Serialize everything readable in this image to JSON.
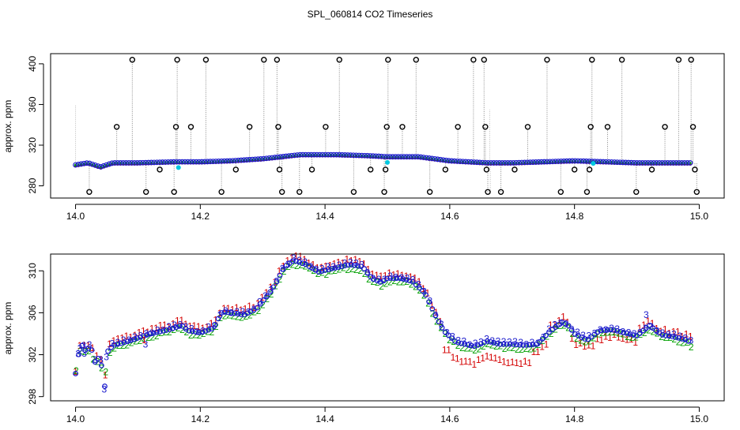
{
  "figure": {
    "title": "SPL_060814  CO2 Timeseries"
  },
  "colors": {
    "black": "#000000",
    "red": "#d40000",
    "green": "#00a000",
    "blue": "#1a1acc",
    "cyan": "#00c8e0",
    "drop": "#8a8a8a"
  },
  "chart_data": [
    {
      "type": "scatter",
      "id": "top",
      "title": "",
      "xlabel": "",
      "ylabel": "approx. ppm",
      "xlim": [
        13.96,
        15.04
      ],
      "ylim": [
        268,
        410
      ],
      "xticks": [
        14.0,
        14.2,
        14.4,
        14.6,
        14.8,
        15.0
      ],
      "xtick_labels": [
        "14.0",
        "14.2",
        "14.4",
        "14.6",
        "14.8",
        "15.0"
      ],
      "yticks": [
        280,
        320,
        360,
        400
      ],
      "ytick_labels": [
        "280",
        "320",
        "360",
        "400"
      ],
      "grid": false,
      "baseline_knots": [
        [
          14.0,
          300
        ],
        [
          14.02,
          302
        ],
        [
          14.04,
          298
        ],
        [
          14.06,
          302
        ],
        [
          14.1,
          302
        ],
        [
          14.16,
          303
        ],
        [
          14.2,
          303
        ],
        [
          14.25,
          304
        ],
        [
          14.3,
          306
        ],
        [
          14.33,
          308
        ],
        [
          14.36,
          310
        ],
        [
          14.42,
          310
        ],
        [
          14.47,
          309
        ],
        [
          14.5,
          308
        ],
        [
          14.55,
          308
        ],
        [
          14.6,
          304
        ],
        [
          14.66,
          302
        ],
        [
          14.7,
          302
        ],
        [
          14.75,
          303
        ],
        [
          14.8,
          304
        ],
        [
          14.85,
          303
        ],
        [
          14.9,
          302
        ],
        [
          14.95,
          302
        ],
        [
          14.99,
          302
        ]
      ],
      "outliers": [
        [
          14.022,
          274
        ],
        [
          14.066,
          338
        ],
        [
          14.091,
          404
        ],
        [
          14.113,
          274
        ],
        [
          14.135,
          296
        ],
        [
          14.158,
          274
        ],
        [
          14.161,
          338
        ],
        [
          14.163,
          404
        ],
        [
          14.185,
          338
        ],
        [
          14.209,
          404
        ],
        [
          14.234,
          274
        ],
        [
          14.257,
          296
        ],
        [
          14.279,
          338
        ],
        [
          14.302,
          404
        ],
        [
          14.323,
          404
        ],
        [
          14.325,
          338
        ],
        [
          14.327,
          296
        ],
        [
          14.331,
          274
        ],
        [
          14.359,
          274
        ],
        [
          14.379,
          296
        ],
        [
          14.401,
          338
        ],
        [
          14.423,
          404
        ],
        [
          14.446,
          274
        ],
        [
          14.473,
          296
        ],
        [
          14.495,
          274
        ],
        [
          14.497,
          296
        ],
        [
          14.499,
          338
        ],
        [
          14.501,
          404
        ],
        [
          14.524,
          338
        ],
        [
          14.546,
          404
        ],
        [
          14.568,
          274
        ],
        [
          14.593,
          296
        ],
        [
          14.613,
          338
        ],
        [
          14.638,
          404
        ],
        [
          14.661,
          274
        ],
        [
          14.659,
          296
        ],
        [
          14.657,
          338
        ],
        [
          14.655,
          404
        ],
        [
          14.682,
          274
        ],
        [
          14.704,
          296
        ],
        [
          14.725,
          338
        ],
        [
          14.756,
          404
        ],
        [
          14.778,
          274
        ],
        [
          14.8,
          296
        ],
        [
          14.82,
          274
        ],
        [
          14.824,
          296
        ],
        [
          14.826,
          338
        ],
        [
          14.828,
          404
        ],
        [
          14.853,
          338
        ],
        [
          14.876,
          404
        ],
        [
          14.899,
          274
        ],
        [
          14.924,
          296
        ],
        [
          14.945,
          338
        ],
        [
          14.967,
          404
        ],
        [
          14.987,
          404
        ],
        [
          14.99,
          338
        ],
        [
          14.993,
          296
        ],
        [
          14.996,
          274
        ]
      ],
      "cyan_points": [
        [
          14.165,
          298
        ],
        [
          14.5,
          303
        ],
        [
          14.83,
          302
        ]
      ]
    },
    {
      "type": "scatter",
      "id": "bottom",
      "title": "",
      "xlabel": "",
      "ylabel": "approx. ppm",
      "xlim": [
        13.96,
        15.04
      ],
      "ylim": [
        297.6,
        311.6
      ],
      "xticks": [
        14.0,
        14.2,
        14.4,
        14.6,
        14.8,
        15.0
      ],
      "xtick_labels": [
        "14.0",
        "14.2",
        "14.4",
        "14.6",
        "14.8",
        "15.0"
      ],
      "yticks": [
        298,
        302,
        306,
        310
      ],
      "ytick_labels": [
        "298",
        "302",
        "306",
        "310"
      ],
      "grid": false,
      "marker_labels": [
        "1",
        "2",
        "3"
      ],
      "series": [
        {
          "name": "1",
          "color": "red"
        },
        {
          "name": "2",
          "color": "green"
        },
        {
          "name": "3",
          "color": "blue"
        }
      ],
      "base_knots": [
        [
          14.0,
          300.2
        ],
        [
          14.004,
          301.8
        ],
        [
          14.01,
          302.9
        ],
        [
          14.017,
          302.3
        ],
        [
          14.024,
          302.9
        ],
        [
          14.031,
          301.3
        ],
        [
          14.039,
          301.8
        ],
        [
          14.044,
          300.2
        ],
        [
          14.047,
          298.9
        ],
        [
          14.05,
          302.2
        ],
        [
          14.06,
          302.9
        ],
        [
          14.08,
          303.2
        ],
        [
          14.1,
          303.6
        ],
        [
          14.12,
          304.0
        ],
        [
          14.15,
          304.4
        ],
        [
          14.17,
          304.8
        ],
        [
          14.18,
          304.3
        ],
        [
          14.2,
          304.1
        ],
        [
          14.22,
          304.5
        ],
        [
          14.235,
          306.1
        ],
        [
          14.25,
          306.0
        ],
        [
          14.27,
          305.8
        ],
        [
          14.29,
          306.4
        ],
        [
          14.31,
          307.8
        ],
        [
          14.32,
          308.7
        ],
        [
          14.335,
          310.4
        ],
        [
          14.35,
          311.0
        ],
        [
          14.37,
          310.6
        ],
        [
          14.39,
          309.9
        ],
        [
          14.41,
          310.2
        ],
        [
          14.44,
          310.6
        ],
        [
          14.46,
          310.4
        ],
        [
          14.475,
          309.3
        ],
        [
          14.49,
          308.9
        ],
        [
          14.5,
          309.3
        ],
        [
          14.52,
          309.3
        ],
        [
          14.54,
          309.0
        ],
        [
          14.56,
          307.9
        ],
        [
          14.575,
          306.0
        ],
        [
          14.59,
          304.3
        ],
        [
          14.61,
          303.2
        ],
        [
          14.64,
          302.8
        ],
        [
          14.66,
          303.3
        ],
        [
          14.68,
          303.0
        ],
        [
          14.7,
          303.0
        ],
        [
          14.72,
          302.9
        ],
        [
          14.74,
          303.0
        ],
        [
          14.76,
          304.2
        ],
        [
          14.78,
          305.1
        ],
        [
          14.79,
          304.8
        ],
        [
          14.8,
          304.0
        ],
        [
          14.82,
          303.4
        ],
        [
          14.84,
          304.3
        ],
        [
          14.86,
          304.4
        ],
        [
          14.88,
          304.1
        ],
        [
          14.9,
          303.8
        ],
        [
          14.92,
          304.8
        ],
        [
          14.94,
          303.9
        ],
        [
          14.96,
          303.7
        ],
        [
          14.98,
          303.4
        ],
        [
          14.988,
          303.1
        ]
      ],
      "red_low_segments": [
        [
          14.59,
          14.73,
          -1.6
        ],
        [
          14.73,
          14.76,
          -0.8
        ],
        [
          14.79,
          14.86,
          -0.8
        ],
        [
          14.86,
          14.9,
          -0.5
        ]
      ],
      "extra_labels": [
        [
          14.007,
          302.6,
          "3"
        ],
        [
          14.014,
          302.1,
          "3"
        ],
        [
          14.046,
          298.7,
          "3"
        ],
        [
          14.112,
          303.0,
          "3"
        ],
        [
          14.915,
          305.8,
          "3"
        ],
        [
          14.11,
          303.4,
          "1"
        ]
      ]
    }
  ]
}
